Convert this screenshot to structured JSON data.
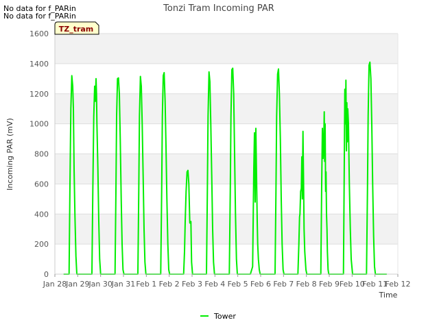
{
  "notes": [
    "No data for f_PARin",
    "No data for f_PARin"
  ],
  "tag_label": "TZ_tram",
  "colors": {
    "series": "#00ee00",
    "band": "#f2f2f2",
    "grid": "#dddddd",
    "tag_bg": "#ffffcc"
  },
  "chart_data": {
    "type": "line",
    "title": "Tonzi Tram Incoming PAR",
    "xlabel": "Time",
    "ylabel": "Incoming PAR (mV)",
    "ylim": [
      0,
      1600
    ],
    "yticks": [
      0,
      200,
      400,
      600,
      800,
      1000,
      1200,
      1400,
      1600
    ],
    "xlim": [
      0,
      15
    ],
    "xticks": [
      {
        "x": 0,
        "label": "Jan 28"
      },
      {
        "x": 1,
        "label": "Jan 29"
      },
      {
        "x": 2,
        "label": "Jan 30"
      },
      {
        "x": 3,
        "label": "Jan 31"
      },
      {
        "x": 4,
        "label": "Feb 1"
      },
      {
        "x": 5,
        "label": "Feb 2"
      },
      {
        "x": 6,
        "label": "Feb 3"
      },
      {
        "x": 7,
        "label": "Feb 4"
      },
      {
        "x": 8,
        "label": "Feb 5"
      },
      {
        "x": 9,
        "label": "Feb 6"
      },
      {
        "x": 10,
        "label": "Feb 7"
      },
      {
        "x": 11,
        "label": "Feb 8"
      },
      {
        "x": 12,
        "label": "Feb 9"
      },
      {
        "x": 13,
        "label": "Feb 10"
      },
      {
        "x": 14,
        "label": "Feb 11"
      },
      {
        "x": 15,
        "label": "Feb 12"
      }
    ],
    "legend": "bottom-center",
    "series": [
      {
        "name": "Tower",
        "x": [
          0.4,
          0.62,
          0.66,
          0.7,
          0.74,
          0.78,
          0.81,
          0.84,
          0.88,
          0.92,
          0.96,
          1.0,
          1.04,
          1.1,
          1.5,
          1.62,
          1.66,
          1.7,
          1.74,
          1.77,
          1.8,
          1.82,
          1.84,
          1.88,
          1.92,
          1.96,
          2.0,
          2.04,
          2.1,
          2.55,
          2.63,
          2.67,
          2.7,
          2.74,
          2.78,
          2.82,
          2.86,
          2.9,
          2.94,
          2.98,
          3.02,
          3.1,
          3.55,
          3.63,
          3.67,
          3.7,
          3.74,
          3.78,
          3.82,
          3.86,
          3.9,
          3.94,
          3.98,
          4.02,
          4.1,
          4.55,
          4.63,
          4.67,
          4.7,
          4.74,
          4.78,
          4.82,
          4.86,
          4.9,
          4.94,
          4.98,
          5.02,
          5.1,
          5.55,
          5.63,
          5.67,
          5.7,
          5.74,
          5.78,
          5.82,
          5.86,
          5.9,
          5.95,
          5.98,
          6.02,
          6.1,
          6.55,
          6.63,
          6.67,
          6.7,
          6.74,
          6.78,
          6.82,
          6.86,
          6.9,
          6.94,
          6.98,
          7.02,
          7.1,
          7.55,
          7.63,
          7.67,
          7.7,
          7.74,
          7.78,
          7.82,
          7.86,
          7.9,
          7.94,
          7.98,
          8.02,
          8.1,
          8.55,
          8.65,
          8.7,
          8.73,
          8.76,
          8.79,
          8.82,
          8.85,
          8.87,
          8.9,
          8.94,
          8.98,
          9.02,
          9.1,
          9.55,
          9.63,
          9.67,
          9.7,
          9.74,
          9.78,
          9.82,
          9.86,
          9.9,
          9.94,
          9.98,
          10.02,
          10.1,
          10.55,
          10.63,
          10.67,
          10.7,
          10.72,
          10.75,
          10.78,
          10.8,
          10.82,
          10.85,
          10.88,
          10.9,
          10.93,
          10.98,
          11.02,
          11.1,
          11.55,
          11.63,
          11.67,
          11.7,
          11.73,
          11.76,
          11.78,
          11.8,
          11.82,
          11.84,
          11.86,
          11.88,
          11.9,
          11.92,
          11.95,
          11.98,
          12.02,
          12.1,
          12.55,
          12.62,
          12.65,
          12.68,
          12.71,
          12.73,
          12.75,
          12.77,
          12.79,
          12.81,
          12.84,
          12.88,
          12.92,
          12.96,
          13.02,
          13.1,
          13.55,
          13.63,
          13.67,
          13.7,
          13.74,
          13.78,
          13.82,
          13.86,
          13.9,
          13.94,
          13.98,
          14.02,
          14.1,
          14.5
        ],
        "values": [
          0,
          0,
          600,
          1100,
          1320,
          1250,
          1100,
          700,
          380,
          120,
          0,
          0,
          0,
          0,
          0,
          0,
          550,
          1050,
          1250,
          1150,
          1300,
          1200,
          1000,
          700,
          350,
          100,
          0,
          0,
          0,
          0,
          0,
          550,
          1050,
          1300,
          1305,
          1200,
          900,
          500,
          200,
          30,
          0,
          0,
          0,
          0,
          550,
          1050,
          1315,
          1250,
          1000,
          650,
          300,
          80,
          0,
          0,
          0,
          0,
          0,
          550,
          1050,
          1320,
          1340,
          1150,
          850,
          500,
          200,
          30,
          0,
          0,
          0,
          0,
          150,
          350,
          550,
          680,
          690,
          600,
          340,
          350,
          80,
          0,
          0,
          0,
          0,
          550,
          1050,
          1345,
          1280,
          1000,
          650,
          300,
          80,
          0,
          0,
          0,
          0,
          0,
          550,
          1050,
          1360,
          1370,
          1200,
          800,
          400,
          100,
          0,
          0,
          0,
          0,
          50,
          700,
          940,
          480,
          970,
          650,
          350,
          200,
          100,
          30,
          0,
          0,
          0,
          0,
          0,
          550,
          1050,
          1330,
          1365,
          1200,
          900,
          500,
          200,
          30,
          0,
          0,
          0,
          0,
          200,
          380,
          400,
          550,
          570,
          780,
          500,
          950,
          560,
          300,
          150,
          30,
          0,
          0,
          0,
          0,
          600,
          970,
          770,
          880,
          1080,
          750,
          1000,
          550,
          680,
          400,
          300,
          150,
          30,
          0,
          0,
          0,
          0,
          0,
          600,
          1230,
          1000,
          1290,
          820,
          1140,
          880,
          1100,
          1000,
          600,
          300,
          100,
          0,
          0,
          0,
          0,
          550,
          1050,
          1390,
          1410,
          1300,
          1000,
          600,
          250,
          50,
          0,
          0,
          0
        ]
      }
    ]
  }
}
